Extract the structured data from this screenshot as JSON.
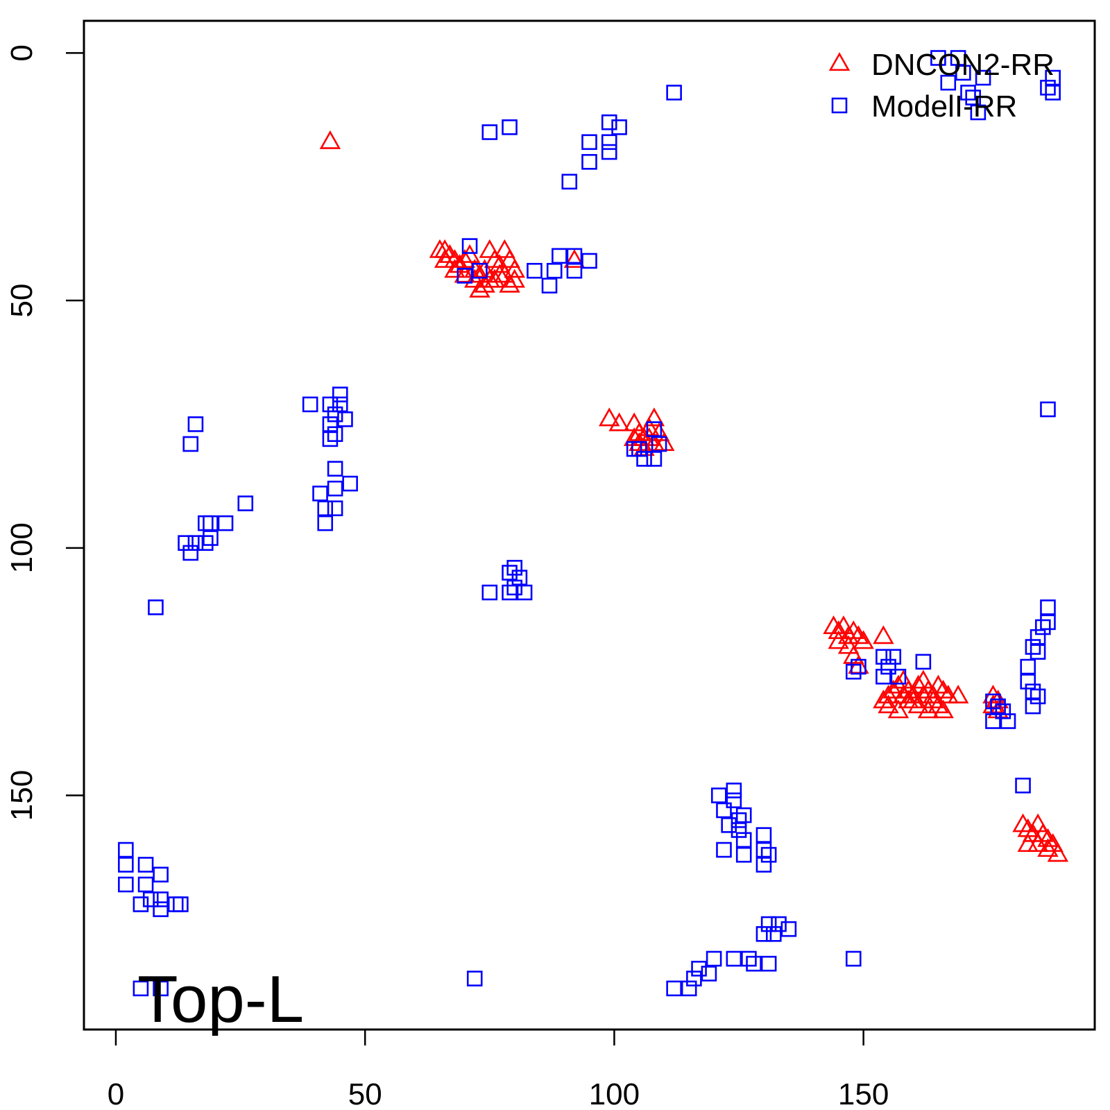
{
  "chart_data": {
    "type": "scatter",
    "title": "",
    "xlabel": "",
    "ylabel": "",
    "xlim": [
      -6.4,
      196.4
    ],
    "ylim": [
      197.3,
      -6.5
    ],
    "y_inverted": true,
    "grid": false,
    "x_ticks": [
      0,
      50,
      100,
      150
    ],
    "y_ticks": [
      0,
      50,
      100,
      150
    ],
    "legend": {
      "position": "top-right"
    },
    "annotation": "Top-L",
    "series": [
      {
        "name": "DNCON2-RR",
        "marker": "triangle",
        "color": "#ff0000",
        "points": [
          [
            43,
            18
          ],
          [
            65,
            40
          ],
          [
            66,
            40
          ],
          [
            67,
            41
          ],
          [
            68,
            42
          ],
          [
            69,
            43
          ],
          [
            70,
            42
          ],
          [
            71,
            41
          ],
          [
            72,
            44
          ],
          [
            73,
            45
          ],
          [
            74,
            44
          ],
          [
            75,
            40
          ],
          [
            76,
            42
          ],
          [
            77,
            43
          ],
          [
            78,
            40
          ],
          [
            79,
            42
          ],
          [
            80,
            44
          ],
          [
            66,
            42
          ],
          [
            68,
            44
          ],
          [
            70,
            45
          ],
          [
            72,
            46
          ],
          [
            74,
            47
          ],
          [
            76,
            46
          ],
          [
            78,
            45
          ],
          [
            80,
            46
          ],
          [
            73,
            48
          ],
          [
            75,
            46
          ],
          [
            77,
            45
          ],
          [
            79,
            47
          ],
          [
            92,
            42
          ],
          [
            99,
            74
          ],
          [
            101,
            75
          ],
          [
            104,
            75
          ],
          [
            105,
            77
          ],
          [
            106,
            78
          ],
          [
            107,
            76
          ],
          [
            108,
            74
          ],
          [
            109,
            77
          ],
          [
            110,
            79
          ],
          [
            104,
            78
          ],
          [
            106,
            80
          ],
          [
            108,
            79
          ],
          [
            105,
            79
          ],
          [
            107,
            78
          ],
          [
            144,
            116
          ],
          [
            145,
            117
          ],
          [
            146,
            116
          ],
          [
            147,
            118
          ],
          [
            148,
            117
          ],
          [
            149,
            118
          ],
          [
            150,
            119
          ],
          [
            154,
            118
          ],
          [
            145,
            119
          ],
          [
            147,
            120
          ],
          [
            148,
            122
          ],
          [
            149,
            124
          ],
          [
            154,
            131
          ],
          [
            155,
            130
          ],
          [
            156,
            129
          ],
          [
            157,
            128
          ],
          [
            158,
            127
          ],
          [
            159,
            129
          ],
          [
            160,
            130
          ],
          [
            161,
            128
          ],
          [
            162,
            127
          ],
          [
            163,
            129
          ],
          [
            164,
            130
          ],
          [
            165,
            128
          ],
          [
            166,
            129
          ],
          [
            167,
            130
          ],
          [
            169,
            130
          ],
          [
            155,
            132
          ],
          [
            157,
            133
          ],
          [
            159,
            131
          ],
          [
            161,
            132
          ],
          [
            163,
            133
          ],
          [
            165,
            132
          ],
          [
            166,
            133
          ],
          [
            158,
            130
          ],
          [
            160,
            131
          ],
          [
            162,
            130
          ],
          [
            164,
            131
          ],
          [
            176,
            130
          ],
          [
            177,
            131
          ],
          [
            176,
            132
          ],
          [
            177,
            133
          ],
          [
            182,
            156
          ],
          [
            183,
            157
          ],
          [
            184,
            158
          ],
          [
            185,
            156
          ],
          [
            186,
            158
          ],
          [
            187,
            159
          ],
          [
            188,
            160
          ],
          [
            183,
            160
          ],
          [
            185,
            160
          ],
          [
            187,
            161
          ],
          [
            189,
            162
          ]
        ]
      },
      {
        "name": "ModelI-RR",
        "marker": "square",
        "color": "#0000ff",
        "points": [
          [
            165,
            1
          ],
          [
            167,
            6
          ],
          [
            169,
            1
          ],
          [
            170,
            4
          ],
          [
            171,
            8
          ],
          [
            172,
            9
          ],
          [
            173,
            12
          ],
          [
            174,
            5
          ],
          [
            187,
            7
          ],
          [
            188,
            5
          ],
          [
            188,
            8
          ],
          [
            112,
            8
          ],
          [
            75,
            16
          ],
          [
            79,
            15
          ],
          [
            91,
            26
          ],
          [
            95,
            18
          ],
          [
            95,
            22
          ],
          [
            99,
            14
          ],
          [
            99,
            18
          ],
          [
            99,
            20
          ],
          [
            101,
            15
          ],
          [
            71,
            39
          ],
          [
            70,
            45
          ],
          [
            73,
            44
          ],
          [
            84,
            44
          ],
          [
            87,
            47
          ],
          [
            88,
            44
          ],
          [
            89,
            41
          ],
          [
            92,
            41
          ],
          [
            92,
            44
          ],
          [
            95,
            42
          ],
          [
            108,
            76
          ],
          [
            109,
            79
          ],
          [
            108,
            82
          ],
          [
            106,
            82
          ],
          [
            105,
            80
          ],
          [
            104,
            80
          ],
          [
            187,
            72
          ],
          [
            39,
            71
          ],
          [
            43,
            71
          ],
          [
            44,
            73
          ],
          [
            45,
            69
          ],
          [
            45,
            71
          ],
          [
            43,
            75
          ],
          [
            44,
            77
          ],
          [
            43,
            78
          ],
          [
            46,
            74
          ],
          [
            44,
            84
          ],
          [
            47,
            87
          ],
          [
            44,
            88
          ],
          [
            41,
            89
          ],
          [
            42,
            92
          ],
          [
            44,
            92
          ],
          [
            42,
            95
          ],
          [
            26,
            91
          ],
          [
            18,
            95
          ],
          [
            19,
            95
          ],
          [
            22,
            95
          ],
          [
            16,
            75
          ],
          [
            15,
            79
          ],
          [
            14,
            99
          ],
          [
            15,
            101
          ],
          [
            16,
            99
          ],
          [
            18,
            99
          ],
          [
            19,
            98
          ],
          [
            8,
            112
          ],
          [
            80,
            104
          ],
          [
            79,
            105
          ],
          [
            81,
            106
          ],
          [
            80,
            108
          ],
          [
            82,
            109
          ],
          [
            75,
            109
          ],
          [
            79,
            109
          ],
          [
            154,
            122
          ],
          [
            156,
            122
          ],
          [
            155,
            124
          ],
          [
            154,
            126
          ],
          [
            157,
            126
          ],
          [
            162,
            123
          ],
          [
            148,
            125
          ],
          [
            149,
            124
          ],
          [
            176,
            131
          ],
          [
            178,
            133
          ],
          [
            179,
            135
          ],
          [
            176,
            135
          ],
          [
            177,
            132
          ],
          [
            185,
            118
          ],
          [
            186,
            116
          ],
          [
            187,
            112
          ],
          [
            187,
            115
          ],
          [
            184,
            120
          ],
          [
            185,
            121
          ],
          [
            183,
            124
          ],
          [
            183,
            127
          ],
          [
            184,
            129
          ],
          [
            185,
            130
          ],
          [
            184,
            132
          ],
          [
            182,
            148
          ],
          [
            148,
            183
          ],
          [
            124,
            149
          ],
          [
            121,
            150
          ],
          [
            124,
            151
          ],
          [
            122,
            153
          ],
          [
            123,
            156
          ],
          [
            125,
            157
          ],
          [
            126,
            154
          ],
          [
            125,
            155
          ],
          [
            126,
            159
          ],
          [
            122,
            161
          ],
          [
            126,
            162
          ],
          [
            130,
            158
          ],
          [
            130,
            161
          ],
          [
            130,
            164
          ],
          [
            131,
            162
          ],
          [
            2,
            161
          ],
          [
            2,
            164
          ],
          [
            6,
            164
          ],
          [
            9,
            166
          ],
          [
            2,
            168
          ],
          [
            6,
            168
          ],
          [
            7,
            171
          ],
          [
            9,
            171
          ],
          [
            12,
            172
          ],
          [
            5,
            172
          ],
          [
            9,
            173
          ],
          [
            13,
            172
          ],
          [
            131,
            176
          ],
          [
            133,
            176
          ],
          [
            135,
            177
          ],
          [
            132,
            178
          ],
          [
            130,
            178
          ],
          [
            120,
            183
          ],
          [
            124,
            183
          ],
          [
            127,
            183
          ],
          [
            128,
            184
          ],
          [
            131,
            184
          ],
          [
            117,
            185
          ],
          [
            119,
            186
          ],
          [
            116,
            187
          ],
          [
            112,
            189
          ],
          [
            115,
            189
          ],
          [
            72,
            187
          ],
          [
            5,
            189
          ],
          [
            9,
            189
          ]
        ]
      }
    ]
  }
}
